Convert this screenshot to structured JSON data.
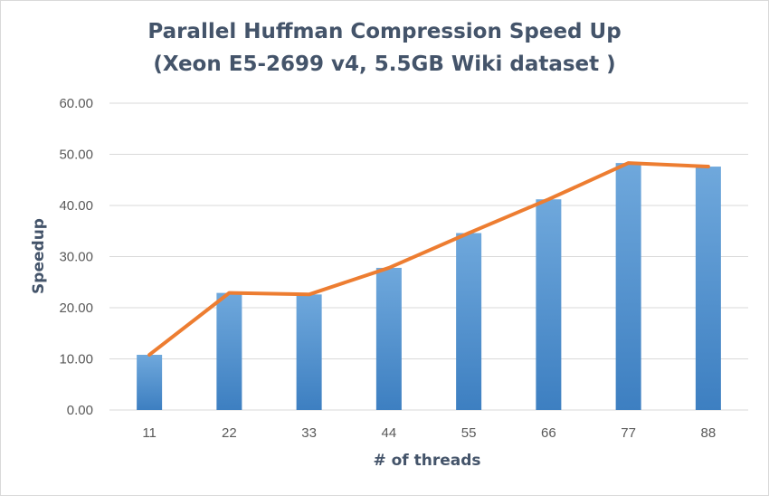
{
  "chart_data": {
    "type": "bar",
    "title_line1": "Parallel  Huffman Compression Speed Up",
    "title_line2": "(Xeon E5-2699 v4, 5.5GB Wiki dataset )",
    "xlabel": "# of threads",
    "ylabel": "Speedup",
    "categories": [
      "11",
      "22",
      "33",
      "44",
      "55",
      "66",
      "77",
      "88"
    ],
    "values": [
      10.8,
      22.9,
      22.6,
      27.8,
      34.6,
      41.2,
      48.3,
      47.6
    ],
    "ylim": [
      0,
      60
    ],
    "yticks": [
      "0.00",
      "10.00",
      "20.00",
      "30.00",
      "40.00",
      "50.00",
      "60.00"
    ],
    "overlay_line": true,
    "grid": true,
    "legend": "none",
    "colors": {
      "bar_top": "#6fa8dc",
      "bar_bottom": "#3d7fc1",
      "line": "#ed7d31",
      "grid": "#d9d9d9",
      "text": "#595959",
      "title": "#44546a"
    }
  }
}
